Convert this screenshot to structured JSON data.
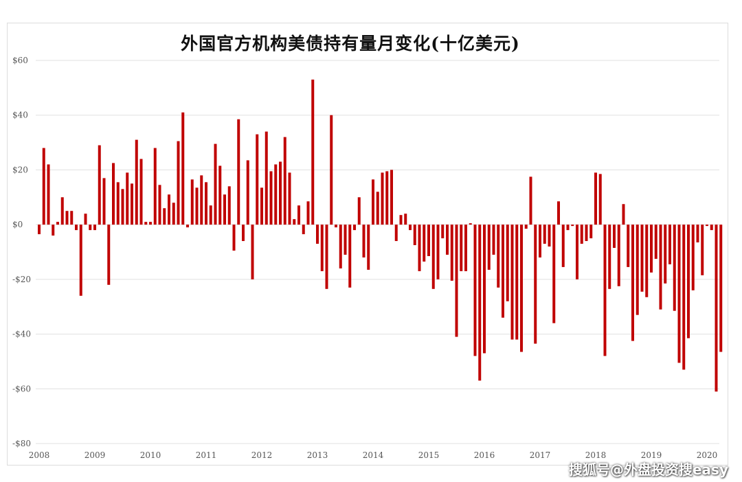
{
  "chart_data": {
    "type": "bar",
    "title": "外国官方机构美债持有量月变化(十亿美元)",
    "xlabel": "",
    "ylabel": "",
    "ylim": [
      -80,
      60
    ],
    "ytick_values": [
      60,
      40,
      20,
      0,
      -20,
      -40,
      -60,
      -80
    ],
    "ytick_labels": [
      "$60",
      "$40",
      "$20",
      "$0",
      "-$20",
      "-$40",
      "-$60",
      "-$80"
    ],
    "xtick_labels": [
      "2008",
      "2009",
      "2010",
      "2011",
      "2012",
      "2013",
      "2014",
      "2015",
      "2016",
      "2017",
      "2018",
      "2019",
      "2020"
    ],
    "start": "2008-01",
    "grid": true,
    "bar_color": "#c00000",
    "values": [
      -3.5,
      28,
      22,
      -4,
      1,
      10,
      5,
      5,
      -2,
      -26,
      4,
      -2,
      -2,
      29,
      17,
      -22,
      22.5,
      15.5,
      13,
      19,
      15,
      31,
      24,
      1,
      1,
      28,
      14.5,
      6,
      11,
      8,
      30.5,
      41,
      -1,
      16.5,
      13.5,
      18,
      15.5,
      7,
      29.5,
      21.5,
      11,
      14,
      -9.5,
      38.5,
      -6,
      23.5,
      -20,
      33,
      13.5,
      34,
      19.5,
      22,
      23,
      32,
      19,
      2,
      7,
      -3.5,
      8.5,
      53,
      -7,
      -17,
      -23.5,
      40,
      -1,
      -16,
      -11,
      -23,
      -2,
      10,
      -12,
      -16.5,
      16.5,
      12,
      19,
      19.5,
      20,
      -6,
      3.5,
      4,
      -2,
      -7.5,
      -17,
      -13.5,
      -11.5,
      -23.5,
      -20,
      -5,
      -11,
      -20.5,
      -41,
      -17,
      -17,
      0.5,
      -48,
      -57,
      -47,
      -16.5,
      -11,
      -23,
      -34,
      -28,
      -42,
      -42,
      -46.5,
      -1.5,
      17.5,
      -43.5,
      -12,
      -7,
      -8,
      -36,
      8.5,
      -15.5,
      -2,
      -0.5,
      -20,
      -7,
      -6,
      -5,
      19,
      18.5,
      -48,
      -23.5,
      -8.5,
      -22.5,
      7.5,
      -15.5,
      -42.5,
      -33,
      -24.5,
      -26.5,
      -17.5,
      -12.5,
      -31,
      -21.5,
      -14.5,
      -31.5,
      -50.5,
      -53,
      -41.5,
      -24,
      -6.5,
      -18.5,
      -0.5,
      -2,
      -61,
      -46.5
    ]
  },
  "watermark": "搜狐号@外盘投资搜easy"
}
